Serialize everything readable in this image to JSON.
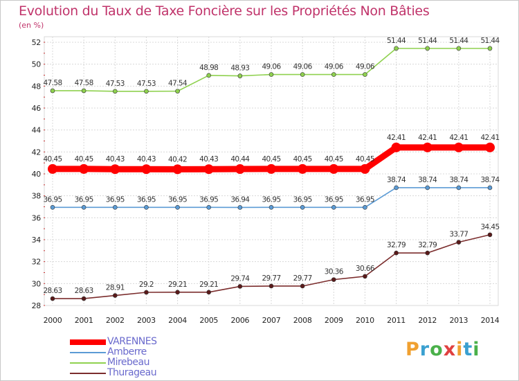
{
  "title": "Evolution du Taux de Taxe Foncière sur les Propriétés Non Bâties",
  "unit_label": "(en %)",
  "logo": {
    "text": "Proxiti",
    "letters": [
      {
        "ch": "P",
        "color": "#f0a030"
      },
      {
        "ch": "r",
        "color": "#3aa0d0"
      },
      {
        "ch": "o",
        "color": "#4ab04a"
      },
      {
        "ch": "x",
        "color": "#e04040"
      },
      {
        "ch": "i",
        "color": "#f0a030"
      },
      {
        "ch": "t",
        "color": "#3aa0d0"
      },
      {
        "ch": "i",
        "color": "#4ab04a"
      }
    ]
  },
  "chart_data": {
    "type": "line",
    "x": [
      2000,
      2001,
      2002,
      2003,
      2004,
      2005,
      2006,
      2007,
      2008,
      2009,
      2010,
      2011,
      2012,
      2013,
      2014
    ],
    "ylim": [
      28,
      52
    ],
    "yticks": [
      28,
      30,
      32,
      34,
      36,
      38,
      40,
      42,
      44,
      46,
      48,
      50,
      52
    ],
    "grid": true,
    "legend_position": "bottom-left",
    "series": [
      {
        "name": "VARENNES",
        "color": "#ff0000",
        "emphasis": true,
        "values": [
          40.45,
          40.45,
          40.43,
          40.43,
          40.42,
          40.43,
          40.44,
          40.45,
          40.45,
          40.45,
          40.45,
          42.41,
          42.41,
          42.41,
          42.41
        ]
      },
      {
        "name": "Amberre",
        "color": "#5b9bd5",
        "values": [
          36.95,
          36.95,
          36.95,
          36.95,
          36.95,
          36.95,
          36.94,
          36.95,
          36.95,
          36.95,
          36.95,
          38.74,
          38.74,
          38.74,
          38.74
        ]
      },
      {
        "name": "Mirebeau",
        "color": "#8fd14f",
        "values": [
          47.58,
          47.58,
          47.53,
          47.53,
          47.54,
          48.98,
          48.93,
          49.06,
          49.06,
          49.06,
          49.06,
          51.44,
          51.44,
          51.44,
          51.44
        ]
      },
      {
        "name": "Thurageau",
        "color": "#7b2d2d",
        "values": [
          28.63,
          28.63,
          28.91,
          29.2,
          29.21,
          29.21,
          29.74,
          29.77,
          29.77,
          30.36,
          30.66,
          32.79,
          32.79,
          33.77,
          34.45
        ]
      }
    ]
  }
}
